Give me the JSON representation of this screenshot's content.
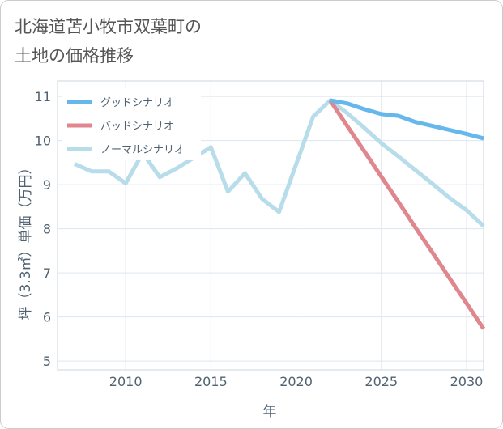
{
  "chart_data": {
    "type": "line",
    "title_lines": [
      "北海道苫小牧市双葉町の",
      "土地の価格推移"
    ],
    "xlabel": "年",
    "ylabel": "坪（3.3㎡）単価（万円）",
    "xlim": [
      2006,
      2031
    ],
    "ylim": [
      4.8,
      11.35
    ],
    "xticks": [
      2010,
      2015,
      2020,
      2025,
      2030
    ],
    "yticks": [
      5,
      6,
      7,
      8,
      9,
      10,
      11
    ],
    "grid": true,
    "legend_position": "top-left",
    "series": [
      {
        "name": "グッドシナリオ",
        "color": "#66b8ec",
        "x": [
          2022,
          2023,
          2024,
          2025,
          2026,
          2027,
          2028,
          2029,
          2030,
          2031
        ],
        "y": [
          10.91,
          10.84,
          10.71,
          10.6,
          10.56,
          10.42,
          10.33,
          10.24,
          10.15,
          10.05
        ]
      },
      {
        "name": "バッドシナリオ",
        "color": "#e0868e",
        "x": [
          2022,
          2023,
          2024,
          2025,
          2026,
          2027,
          2028,
          2029,
          2030,
          2031
        ],
        "y": [
          10.91,
          10.33,
          9.76,
          9.18,
          8.61,
          8.03,
          7.46,
          6.88,
          6.31,
          5.73
        ]
      },
      {
        "name": "ノーマルシナリオ",
        "color": "#b7dcea",
        "x": [
          2007,
          2008,
          2009,
          2010,
          2011,
          2012,
          2013,
          2014,
          2015,
          2016,
          2017,
          2018,
          2019,
          2020,
          2021,
          2022,
          2023,
          2024,
          2025,
          2026,
          2027,
          2028,
          2029,
          2030,
          2031
        ],
        "y": [
          9.47,
          9.3,
          9.3,
          9.03,
          9.72,
          9.17,
          9.37,
          9.61,
          9.85,
          8.84,
          9.26,
          8.68,
          8.38,
          9.46,
          10.54,
          10.91,
          10.62,
          10.29,
          9.94,
          9.64,
          9.33,
          9.02,
          8.7,
          8.42,
          8.06
        ]
      }
    ]
  }
}
